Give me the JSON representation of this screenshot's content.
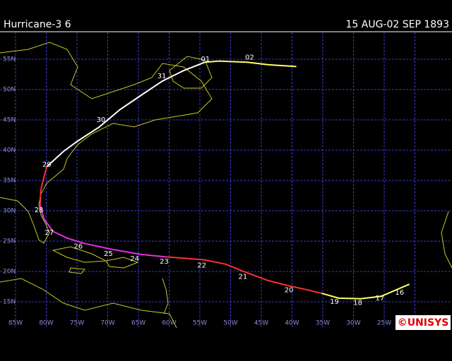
{
  "header": {
    "title": "Hurricane-3 6",
    "dates": "15 AUG-02 SEP 1893"
  },
  "map": {
    "lat_lines": [
      {
        "value": 55,
        "label": "55N"
      },
      {
        "value": 50,
        "label": "50N"
      },
      {
        "value": 45,
        "label": "45N"
      },
      {
        "value": 40,
        "label": "40N"
      },
      {
        "value": 35,
        "label": "35N"
      },
      {
        "value": 30,
        "label": "30N"
      },
      {
        "value": 25,
        "label": "25N"
      },
      {
        "value": 20,
        "label": "20N"
      },
      {
        "value": 15,
        "label": "15N"
      }
    ],
    "lon_lines": [
      {
        "value": 85,
        "label": "85W"
      },
      {
        "value": 80,
        "label": "80W"
      },
      {
        "value": 75,
        "label": "75W"
      },
      {
        "value": 70,
        "label": "70W"
      },
      {
        "value": 65,
        "label": "65W"
      },
      {
        "value": 60,
        "label": "60W"
      },
      {
        "value": 55,
        "label": "55W"
      },
      {
        "value": 50,
        "label": "50W"
      },
      {
        "value": 45,
        "label": "45W"
      },
      {
        "value": 40,
        "label": "40W"
      },
      {
        "value": 35,
        "label": "35W"
      },
      {
        "value": 30,
        "label": "30W"
      },
      {
        "value": 25,
        "label": "25W"
      },
      {
        "value": 20,
        "label": "20W"
      }
    ],
    "track": [
      {
        "color": "#ffff66",
        "points": [
          [
            20.9,
            17.9
          ],
          [
            23.2,
            16.9
          ],
          [
            25.5,
            15.9
          ],
          [
            28.9,
            15.5
          ],
          [
            32.4,
            15.6
          ],
          [
            35.2,
            16.4
          ]
        ]
      },
      {
        "color": "#ff3030",
        "points": [
          [
            35.2,
            16.4
          ],
          [
            38.1,
            17.1
          ],
          [
            40.4,
            17.6
          ],
          [
            43.9,
            18.5
          ],
          [
            47.9,
            20.0
          ],
          [
            50.8,
            21.2
          ],
          [
            54.2,
            21.9
          ],
          [
            57.7,
            22.2
          ],
          [
            60.5,
            22.4
          ]
        ]
      },
      {
        "color": "#e030e0",
        "points": [
          [
            60.5,
            22.4
          ],
          [
            64.5,
            22.8
          ],
          [
            69.1,
            23.6
          ],
          [
            73.7,
            24.6
          ],
          [
            76.6,
            25.5
          ],
          [
            78.9,
            26.6
          ],
          [
            80.4,
            28.7
          ],
          [
            81.0,
            31.0
          ]
        ]
      },
      {
        "color": "#ff3030",
        "points": [
          [
            81.0,
            31.0
          ],
          [
            80.9,
            33.4
          ],
          [
            80.4,
            35.5
          ],
          [
            79.9,
            37.3
          ]
        ]
      },
      {
        "color": "#ffffff",
        "points": [
          [
            79.9,
            37.3
          ],
          [
            77.2,
            39.8
          ],
          [
            74.9,
            41.5
          ],
          [
            71.4,
            43.8
          ],
          [
            68.0,
            46.7
          ],
          [
            64.5,
            49.1
          ],
          [
            61.1,
            51.4
          ],
          [
            57.7,
            53.1
          ],
          [
            54.2,
            54.5
          ]
        ]
      },
      {
        "color": "#ffff66",
        "points": [
          [
            54.2,
            54.5
          ],
          [
            51.9,
            54.7
          ],
          [
            47.3,
            54.5
          ],
          [
            43.9,
            54.1
          ],
          [
            39.3,
            53.8
          ]
        ]
      }
    ],
    "day_labels": [
      {
        "label": "16",
        "lon": 22.5,
        "lat": 16.5
      },
      {
        "label": "17",
        "lon": 25.7,
        "lat": 15.6
      },
      {
        "label": "18",
        "lon": 29.3,
        "lat": 14.8
      },
      {
        "label": "19",
        "lon": 33.1,
        "lat": 15.0
      },
      {
        "label": "20",
        "lon": 40.5,
        "lat": 16.9
      },
      {
        "label": "21",
        "lon": 48.0,
        "lat": 19.1
      },
      {
        "label": "22",
        "lon": 54.7,
        "lat": 21.0
      },
      {
        "label": "23",
        "lon": 60.8,
        "lat": 21.6
      },
      {
        "label": "24",
        "lon": 65.6,
        "lat": 22.1
      },
      {
        "label": "25",
        "lon": 69.9,
        "lat": 22.9
      },
      {
        "label": "26",
        "lon": 74.8,
        "lat": 24.1
      },
      {
        "label": "27",
        "lon": 79.5,
        "lat": 26.4
      },
      {
        "label": "28",
        "lon": 81.2,
        "lat": 30.1
      },
      {
        "label": "29",
        "lon": 79.9,
        "lat": 37.6
      },
      {
        "label": "30",
        "lon": 71.1,
        "lat": 45.0
      },
      {
        "label": "31",
        "lon": 61.2,
        "lat": 52.2
      },
      {
        "label": "01",
        "lon": 54.1,
        "lat": 55.0
      },
      {
        "label": "02",
        "lon": 46.9,
        "lat": 55.3
      }
    ]
  },
  "logo": "©UNISYS"
}
